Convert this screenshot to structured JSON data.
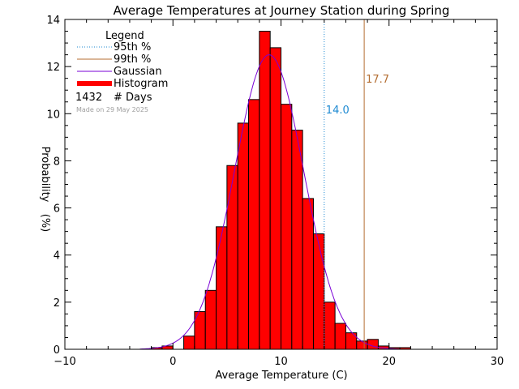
{
  "chart_data": {
    "type": "bar",
    "title": "Average Temperatures at Journey Station during Spring",
    "xlabel": "Average Temperature (C)",
    "ylabel_top": "Probability",
    "ylabel_bottom": "(%)",
    "xlim": [
      -10,
      30
    ],
    "ylim": [
      0,
      14
    ],
    "xticks": [
      -10,
      0,
      10,
      20,
      30
    ],
    "yticks": [
      0,
      2,
      4,
      6,
      8,
      10,
      12,
      14
    ],
    "bin_width": 1,
    "bins": [
      {
        "x": -2,
        "value": 0.07
      },
      {
        "x": -1,
        "value": 0.14
      },
      {
        "x": 0,
        "value": 0.0
      },
      {
        "x": 1,
        "value": 0.56
      },
      {
        "x": 2,
        "value": 1.6
      },
      {
        "x": 3,
        "value": 2.5
      },
      {
        "x": 4,
        "value": 5.2
      },
      {
        "x": 5,
        "value": 7.8
      },
      {
        "x": 6,
        "value": 9.6
      },
      {
        "x": 7,
        "value": 10.6
      },
      {
        "x": 8,
        "value": 13.5
      },
      {
        "x": 9,
        "value": 12.8
      },
      {
        "x": 10,
        "value": 10.4
      },
      {
        "x": 11,
        "value": 9.3
      },
      {
        "x": 12,
        "value": 6.4
      },
      {
        "x": 13,
        "value": 4.9
      },
      {
        "x": 14,
        "value": 2.0
      },
      {
        "x": 15,
        "value": 1.1
      },
      {
        "x": 16,
        "value": 0.7
      },
      {
        "x": 17,
        "value": 0.35
      },
      {
        "x": 18,
        "value": 0.42
      },
      {
        "x": 19,
        "value": 0.14
      },
      {
        "x": 20,
        "value": 0.07
      },
      {
        "x": 21,
        "value": 0.07
      }
    ],
    "gaussian": {
      "mean": 8.9,
      "sigma": 3.2,
      "peak": 12.5
    },
    "percentiles": [
      {
        "name": "95th %",
        "value": 14.0,
        "label": "14.0",
        "color": "#1e8ad2",
        "style": "dotted"
      },
      {
        "name": "99th %",
        "value": 17.7,
        "label": "17.7",
        "color": "#b46e32",
        "style": "solid"
      }
    ],
    "colors": {
      "histogram": "#ff0000",
      "gaussian": "#7a00d6",
      "watermark": "#a0a0a0"
    },
    "legend": {
      "title": "Legend",
      "placement": "top-left",
      "items": [
        {
          "label": "95th %",
          "color": "#1e8ad2",
          "kind": "dotted"
        },
        {
          "label": "99th %",
          "color": "#b46e32",
          "kind": "solid"
        },
        {
          "label": "Gaussian",
          "color": "#7a00d6",
          "kind": "solid"
        },
        {
          "label": "Histogram",
          "color": "#ff0000",
          "kind": "thick"
        }
      ],
      "count_value": "1432",
      "count_label": "# Days"
    },
    "watermark": "Made on 29 May 2025"
  }
}
